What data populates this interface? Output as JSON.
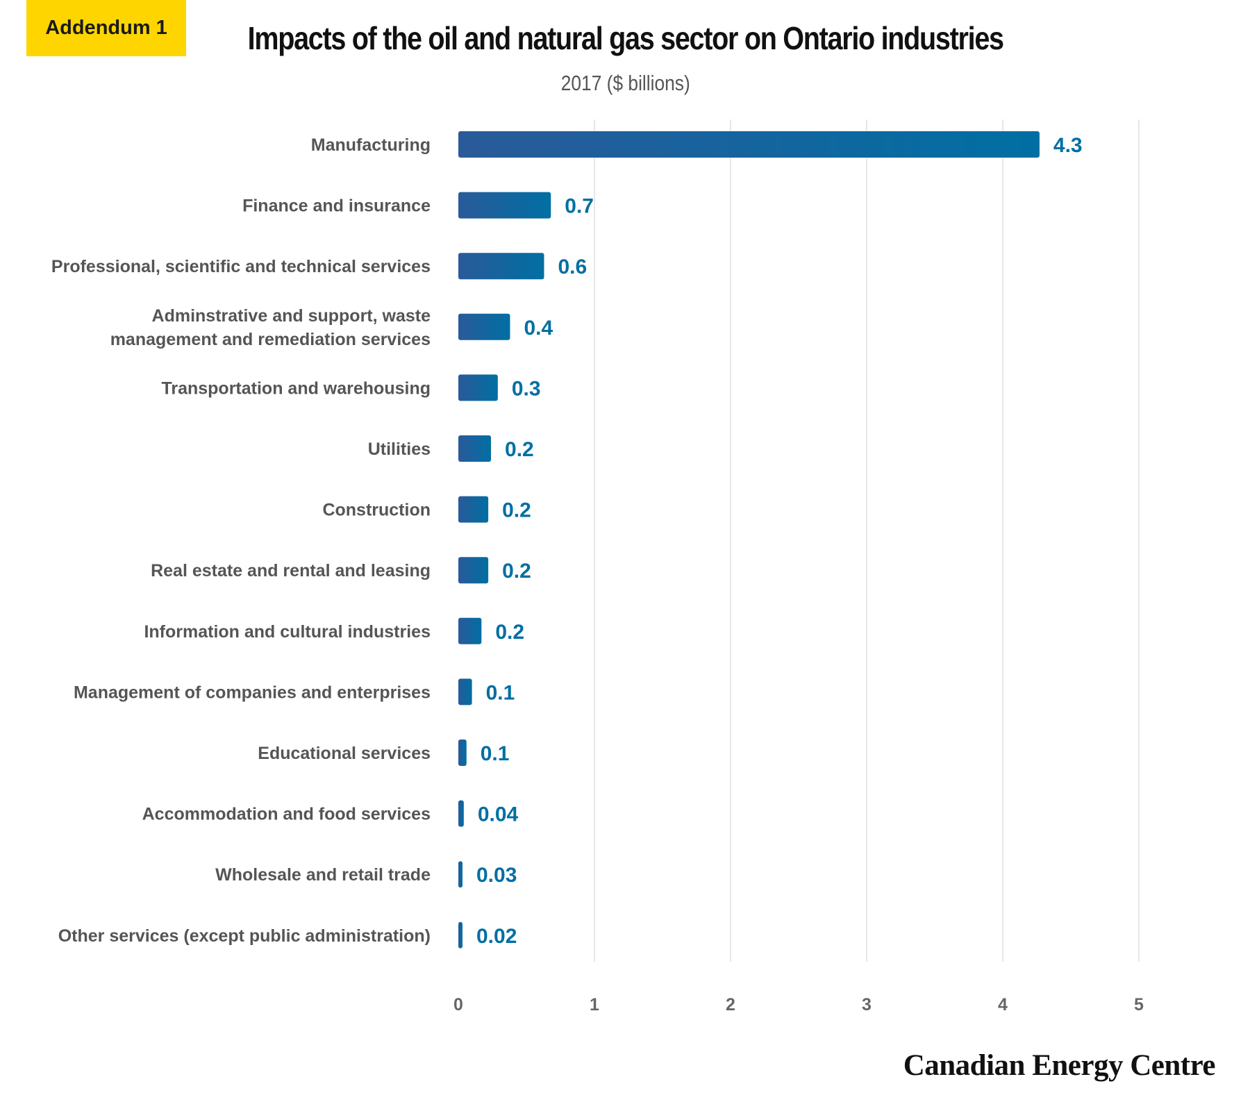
{
  "badge": "Addendum 1",
  "title": "Impacts of the oil and natural gas sector on Ontario industries",
  "subtitle": "2017 ($ billions)",
  "brand": "Canadian Energy Centre",
  "colors": {
    "bar_start": "#2A5A99",
    "bar_end": "#006FA3",
    "value_label": "#006FA3",
    "accent": "#FFD500",
    "grid": "#E6E6E6"
  },
  "chart_data": {
    "type": "bar",
    "orientation": "horizontal",
    "categories": [
      "Manufacturing",
      "Finance and insurance",
      "Professional, scientific and technical services",
      "Adminstrative and support, waste management and remediation services",
      "Transportation and warehousing",
      "Utilities",
      "Construction",
      "Real estate and rental and leasing",
      "Information and cultural industries",
      "Management of companies and enterprises",
      "Educational services",
      "Accommodation and food services",
      "Wholesale and retail trade",
      "Other services (except public administration)"
    ],
    "category_label_lines": [
      [
        "Manufacturing"
      ],
      [
        "Finance and insurance"
      ],
      [
        "Professional, scientific and technical services"
      ],
      [
        "Adminstrative and support, waste",
        "management and remediation services"
      ],
      [
        "Transportation and warehousing"
      ],
      [
        "Utilities"
      ],
      [
        "Construction"
      ],
      [
        "Real estate and rental and leasing"
      ],
      [
        "Information and cultural industries"
      ],
      [
        "Management of companies and enterprises"
      ],
      [
        "Educational services"
      ],
      [
        "Accommodation and food services"
      ],
      [
        "Wholesale and retail trade"
      ],
      [
        "Other services (except public administration)"
      ]
    ],
    "values": [
      4.27,
      0.68,
      0.63,
      0.38,
      0.29,
      0.24,
      0.22,
      0.22,
      0.17,
      0.1,
      0.06,
      0.04,
      0.03,
      0.02
    ],
    "value_labels": [
      "4.3",
      "0.7",
      "0.6",
      "0.4",
      "0.3",
      "0.2",
      "0.2",
      "0.2",
      "0.2",
      "0.1",
      "0.1",
      "0.04",
      "0.03",
      "0.02"
    ],
    "xlim": [
      0,
      5
    ],
    "xticks": [
      "0",
      "1",
      "2",
      "3",
      "4",
      "5"
    ],
    "grid": true,
    "legend": "none"
  }
}
